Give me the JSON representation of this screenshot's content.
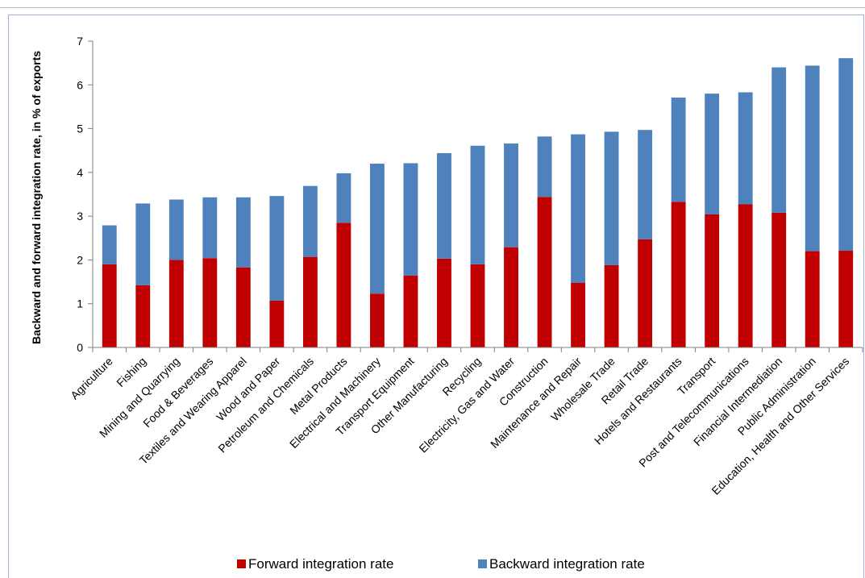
{
  "chart_data": {
    "type": "bar",
    "stacked": true,
    "title": "",
    "xlabel": "",
    "ylabel": "Backward and forward integration rate, in % of exports",
    "ylim": [
      0,
      7
    ],
    "yticks": [
      0,
      1,
      2,
      3,
      4,
      5,
      6,
      7
    ],
    "grid": false,
    "legend_position": "bottom",
    "categories": [
      "Agriculture",
      "Fishing",
      "Mining and Quarrying",
      "Food & Beverages",
      "Textiles and Wearing Apparel",
      "Wood and Paper",
      "Petroleum and Chemicals",
      "Metal Products",
      "Electrical and Machinery",
      "Transport Equipment",
      "Other Manufacturing",
      "Recycling",
      "Electricity, Gas and Water",
      "Construction",
      "Maintenance and Repair",
      "Wholesale Trade",
      "Retail Trade",
      "Hotels and Restaurants",
      "Transport",
      "Post and Telecommunications",
      "Financial Intermediation",
      "Public Administration",
      "Education, Health and Other Services"
    ],
    "series": [
      {
        "name": "Forward integration rate",
        "color": "#c00000",
        "values": [
          1.9,
          1.42,
          2.0,
          2.04,
          1.83,
          1.07,
          2.07,
          2.85,
          1.23,
          1.64,
          2.03,
          1.9,
          2.29,
          3.44,
          1.48,
          1.88,
          2.47,
          3.33,
          3.04,
          3.27,
          3.08,
          2.2,
          2.21
        ]
      },
      {
        "name": "Backward integration rate",
        "color": "#4f81bd",
        "values": [
          0.89,
          1.87,
          1.38,
          1.39,
          1.6,
          2.39,
          1.62,
          1.13,
          2.97,
          2.57,
          2.41,
          2.71,
          2.37,
          1.38,
          3.39,
          3.05,
          2.5,
          2.38,
          2.76,
          2.56,
          3.32,
          4.24,
          4.4
        ]
      }
    ]
  }
}
